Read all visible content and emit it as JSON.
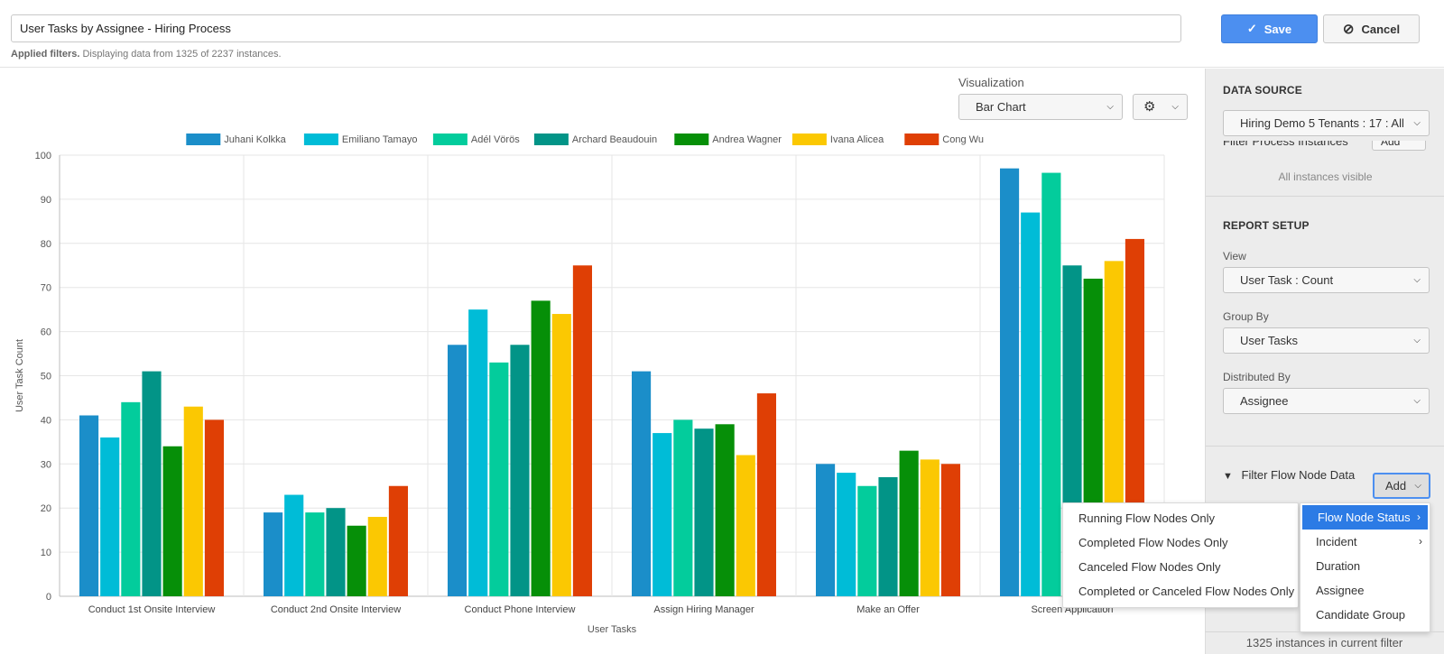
{
  "header": {
    "report_name": "User Tasks by Assignee - Hiring Process",
    "filters_bold": "Applied filters.",
    "filters_text": "Displaying data from 1325 of 2237 instances.",
    "save_label": "Save",
    "cancel_label": "Cancel"
  },
  "toolbar": {
    "visualization_label": "Visualization",
    "visualization_value": "Bar Chart"
  },
  "sidebar": {
    "data_source_title": "DATA SOURCE",
    "data_source_value": "Hiring Demo 5 Tenants : 17 : All",
    "filter_process_label": "Filter Process Instances",
    "filter_process_add": "Add",
    "instances_visible": "All instances visible",
    "report_setup_title": "REPORT SETUP",
    "view_label": "View",
    "view_value": "User Task : Count",
    "group_by_label": "Group By",
    "group_by_value": "User Tasks",
    "distributed_by_label": "Distributed By",
    "distributed_by_value": "Assignee",
    "filter_flow_node_label": "Filter Flow Node Data",
    "add_label": "Add",
    "footer": "1325 instances in current filter"
  },
  "menu_left": [
    "Running Flow Nodes Only",
    "Completed Flow Nodes Only",
    "Canceled Flow Nodes Only",
    "Completed or Canceled Flow Nodes Only"
  ],
  "menu_right": [
    {
      "label": "Flow Node Status",
      "submenu": true,
      "active": true
    },
    {
      "label": "Incident",
      "submenu": true,
      "active": false
    },
    {
      "label": "Duration",
      "submenu": false,
      "active": false
    },
    {
      "label": "Assignee",
      "submenu": false,
      "active": false
    },
    {
      "label": "Candidate Group",
      "submenu": false,
      "active": false
    }
  ],
  "chart_data": {
    "type": "bar",
    "xlabel": "User Tasks",
    "ylabel": "User Task Count",
    "ylim": [
      0,
      100
    ],
    "yticks": [
      0,
      10,
      20,
      30,
      40,
      50,
      60,
      70,
      80,
      90,
      100
    ],
    "grid": true,
    "legend": "top",
    "categories": [
      "Conduct 1st Onsite Interview",
      "Conduct 2nd Onsite Interview",
      "Conduct Phone Interview",
      "Assign Hiring Manager",
      "Make an Offer",
      "Screen Application"
    ],
    "series": [
      {
        "name": "Juhani Kolkka",
        "color": "#1b8ec9",
        "values": [
          41,
          19,
          57,
          51,
          30,
          97
        ]
      },
      {
        "name": "Emiliano Tamayo",
        "color": "#00bcd7",
        "values": [
          36,
          23,
          65,
          37,
          28,
          87
        ]
      },
      {
        "name": "Adél Vörös",
        "color": "#03cc9c",
        "values": [
          44,
          19,
          53,
          40,
          25,
          96
        ]
      },
      {
        "name": "Archard Beaudouin",
        "color": "#029487",
        "values": [
          51,
          20,
          57,
          38,
          27,
          75
        ]
      },
      {
        "name": "Andrea Wagner",
        "color": "#068f08",
        "values": [
          34,
          16,
          67,
          39,
          33,
          72
        ]
      },
      {
        "name": "Ivana Alicea",
        "color": "#fbc802",
        "values": [
          43,
          18,
          64,
          32,
          31,
          76
        ]
      },
      {
        "name": "Cong Wu",
        "color": "#df3f05",
        "values": [
          40,
          25,
          75,
          46,
          30,
          81
        ]
      }
    ]
  }
}
